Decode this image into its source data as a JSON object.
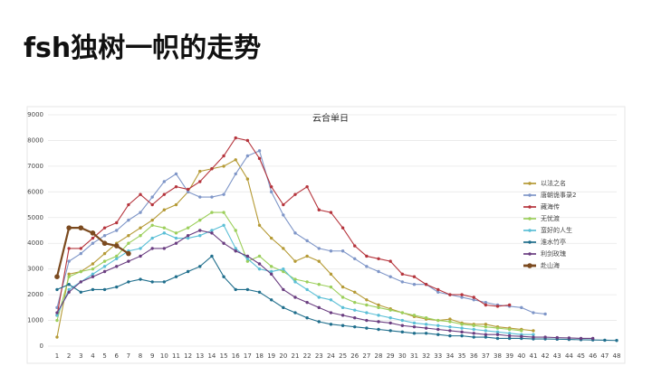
{
  "heading": "fsh独树一帜的走势",
  "chart_data": {
    "type": "line",
    "title": "云合单日",
    "x": [
      1,
      2,
      3,
      4,
      5,
      6,
      7,
      8,
      9,
      10,
      11,
      12,
      13,
      14,
      15,
      16,
      17,
      18,
      19,
      20,
      21,
      22,
      23,
      24,
      25,
      26,
      27,
      28,
      29,
      30,
      31,
      32,
      33,
      34,
      35,
      36,
      37,
      38,
      39,
      40,
      41,
      42,
      43,
      44,
      45,
      46,
      47,
      48
    ],
    "xlim": [
      1,
      48
    ],
    "ylim": [
      0,
      9000
    ],
    "yticks": [
      0,
      1000,
      2000,
      3000,
      4000,
      5000,
      6000,
      7000,
      8000,
      9000
    ],
    "grid": true,
    "legend": "right",
    "series": [
      {
        "name": "以法之名",
        "color": "#b59a35",
        "values": [
          350,
          2800,
          2900,
          3200,
          3600,
          4000,
          4300,
          4600,
          4900,
          5300,
          5500,
          6000,
          6800,
          6900,
          7000,
          7250,
          6500,
          4700,
          4200,
          3800,
          3300,
          3500,
          3300,
          2800,
          2300,
          2100,
          1800,
          1600,
          1450,
          1300,
          1150,
          1050,
          1000,
          1050,
          900,
          850,
          850,
          750,
          700,
          650,
          600,
          null,
          null,
          null,
          null,
          null,
          null,
          null
        ]
      },
      {
        "name": "唐朝诡事录2",
        "color": "#7f96c8",
        "values": [
          1500,
          3300,
          3600,
          4000,
          4300,
          4500,
          4900,
          5200,
          5800,
          6400,
          6700,
          6000,
          5800,
          5800,
          5900,
          6700,
          7400,
          7600,
          6000,
          5100,
          4400,
          4100,
          3800,
          3700,
          3700,
          3400,
          3100,
          2900,
          2700,
          2500,
          2400,
          2400,
          2100,
          2000,
          1900,
          1800,
          1700,
          1600,
          1550,
          1500,
          1300,
          1250,
          null,
          null,
          null,
          null,
          null,
          null
        ]
      },
      {
        "name": "藏海传",
        "color": "#b5343c",
        "values": [
          1200,
          3800,
          3800,
          4200,
          4600,
          4800,
          5500,
          5900,
          5500,
          5900,
          6200,
          6100,
          6400,
          6900,
          7400,
          8100,
          8000,
          7300,
          6200,
          5500,
          5900,
          6200,
          5300,
          5200,
          4600,
          3900,
          3500,
          3400,
          3300,
          2800,
          2700,
          2400,
          2200,
          2000,
          2000,
          1900,
          1600,
          1550,
          1600,
          null,
          null,
          null,
          null,
          null,
          null,
          null,
          null,
          null
        ]
      },
      {
        "name": "无忧渡",
        "color": "#9ccf5b",
        "values": [
          1000,
          2700,
          2900,
          3000,
          3300,
          3500,
          4000,
          4300,
          4700,
          4600,
          4400,
          4600,
          4900,
          5200,
          5200,
          4500,
          3300,
          3500,
          3100,
          2900,
          2600,
          2500,
          2400,
          2300,
          1900,
          1700,
          1600,
          1500,
          1400,
          1300,
          1200,
          1100,
          1000,
          950,
          850,
          800,
          750,
          700,
          650,
          600,
          null,
          null,
          null,
          null,
          null,
          null,
          null,
          null
        ]
      },
      {
        "name": "蛮好的人生",
        "color": "#5bbfd6",
        "values": [
          1200,
          2200,
          2500,
          2800,
          3100,
          3400,
          3700,
          3800,
          4200,
          4400,
          4200,
          4200,
          4300,
          4500,
          4700,
          3800,
          3400,
          3000,
          2900,
          3000,
          2500,
          2200,
          1900,
          1800,
          1500,
          1400,
          1300,
          1200,
          1100,
          1000,
          900,
          850,
          800,
          750,
          700,
          650,
          600,
          550,
          500,
          450,
          450,
          null,
          null,
          null,
          null,
          null,
          null,
          null
        ]
      },
      {
        "name": "淮水竹亭",
        "color": "#1f6e8c",
        "values": [
          2200,
          2400,
          2100,
          2200,
          2200,
          2300,
          2500,
          2600,
          2500,
          2500,
          2700,
          2900,
          3100,
          3500,
          2700,
          2200,
          2200,
          2100,
          1800,
          1500,
          1300,
          1100,
          950,
          850,
          800,
          750,
          700,
          650,
          600,
          550,
          500,
          500,
          450,
          400,
          400,
          350,
          350,
          300,
          300,
          300,
          280,
          280,
          270,
          260,
          250,
          240,
          230,
          220
        ]
      },
      {
        "name": "利剑玫瑰",
        "color": "#6a3d80",
        "values": [
          1300,
          2100,
          2500,
          2700,
          2900,
          3100,
          3300,
          3500,
          3800,
          3800,
          4000,
          4300,
          4500,
          4400,
          4000,
          3700,
          3500,
          3200,
          2800,
          2200,
          1900,
          1700,
          1500,
          1300,
          1200,
          1100,
          1000,
          950,
          900,
          800,
          750,
          700,
          650,
          600,
          550,
          500,
          450,
          450,
          400,
          380,
          350,
          350,
          330,
          320,
          300,
          300,
          null,
          null
        ]
      },
      {
        "name": "赴山海",
        "color": "#7b4a1f",
        "values": [
          2700,
          4600,
          4600,
          4400,
          4000,
          3900,
          3600,
          null,
          null,
          null,
          null,
          null,
          null,
          null,
          null,
          null,
          null,
          null,
          null,
          null,
          null,
          null,
          null,
          null,
          null,
          null,
          null,
          null,
          null,
          null,
          null,
          null,
          null,
          null,
          null,
          null,
          null,
          null,
          null,
          null,
          null,
          null,
          null,
          null,
          null,
          null,
          null,
          null
        ]
      }
    ]
  }
}
